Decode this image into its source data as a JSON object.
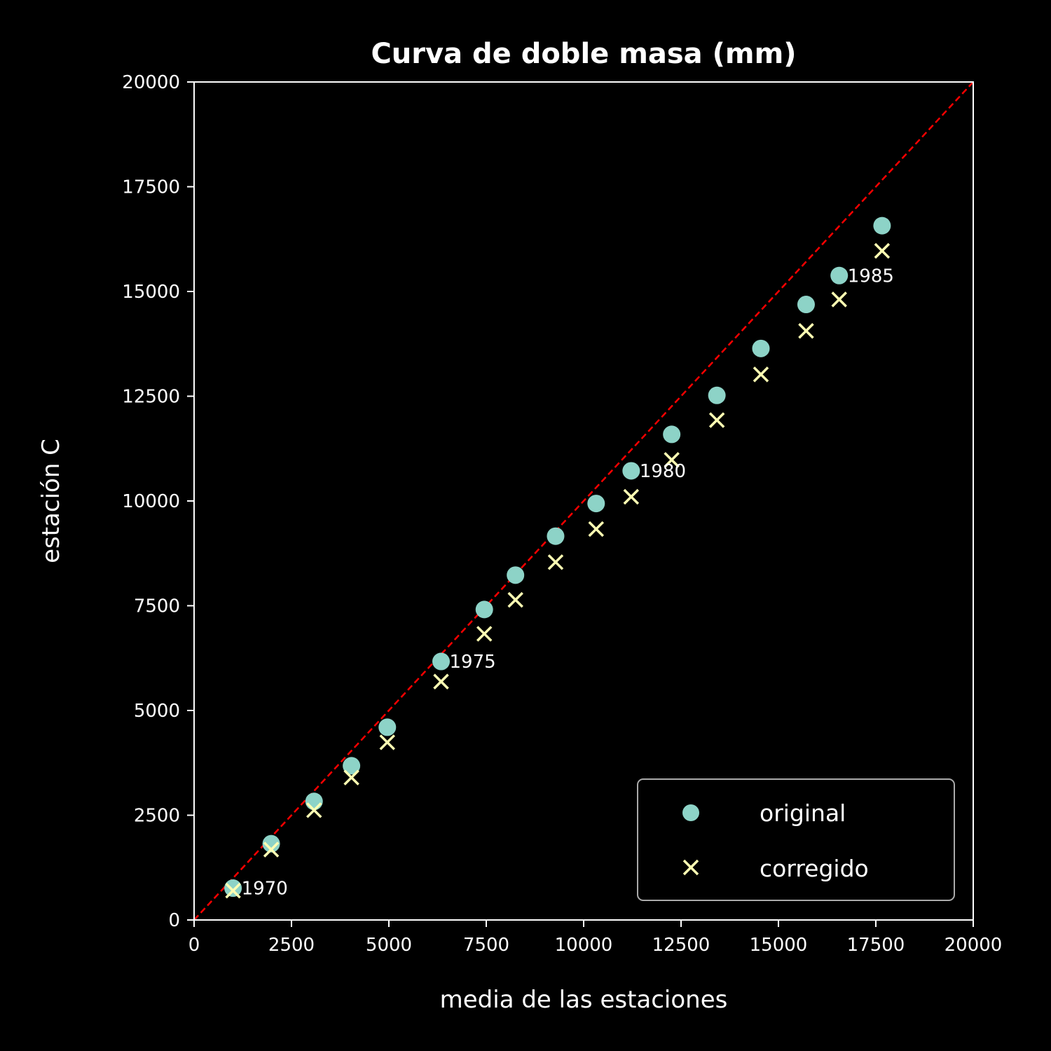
{
  "chart_data": {
    "type": "scatter",
    "title": "Curva de doble masa (mm)",
    "xlabel": "media de las estaciones",
    "ylabel": "estación C",
    "xlim": [
      0,
      20000
    ],
    "ylim": [
      0,
      20000
    ],
    "xticks": [
      0,
      2500,
      5000,
      7500,
      10000,
      12500,
      15000,
      17500,
      20000
    ],
    "yticks": [
      0,
      2500,
      5000,
      7500,
      10000,
      12500,
      15000,
      17500,
      20000
    ],
    "grid": false,
    "legend_position": "bottom-right",
    "reference_line": {
      "x": [
        0,
        20000
      ],
      "y": [
        0,
        20000
      ],
      "color": "#ff0000",
      "style": "dashed"
    },
    "series": [
      {
        "name": "original",
        "marker": "circle",
        "color": "#8dd3c7",
        "x": [
          1000,
          1980,
          3080,
          4040,
          4960,
          6340,
          7450,
          8250,
          9280,
          10320,
          11220,
          12260,
          13420,
          14550,
          15710,
          16560,
          17660
        ],
        "y": [
          760,
          1820,
          2830,
          3680,
          4600,
          6170,
          7410,
          8230,
          9160,
          9940,
          10720,
          11590,
          12520,
          13640,
          14690,
          15380,
          16570
        ]
      },
      {
        "name": "corregido",
        "marker": "x",
        "color": "#ffffb3",
        "x": [
          1000,
          1980,
          3080,
          4040,
          4960,
          6340,
          7450,
          8250,
          9280,
          10320,
          11220,
          12260,
          13420,
          14550,
          15710,
          16560,
          17660
        ],
        "y": [
          700,
          1680,
          2620,
          3400,
          4240,
          5690,
          6830,
          7640,
          8540,
          9330,
          10100,
          10980,
          11930,
          13020,
          14060,
          14810,
          15970
        ]
      }
    ],
    "annotations": [
      {
        "text": "1970",
        "x": 1000,
        "y": 760
      },
      {
        "text": "1975",
        "x": 6340,
        "y": 6170
      },
      {
        "text": "1980",
        "x": 11220,
        "y": 10720
      },
      {
        "text": "1985",
        "x": 16560,
        "y": 15380
      }
    ]
  }
}
